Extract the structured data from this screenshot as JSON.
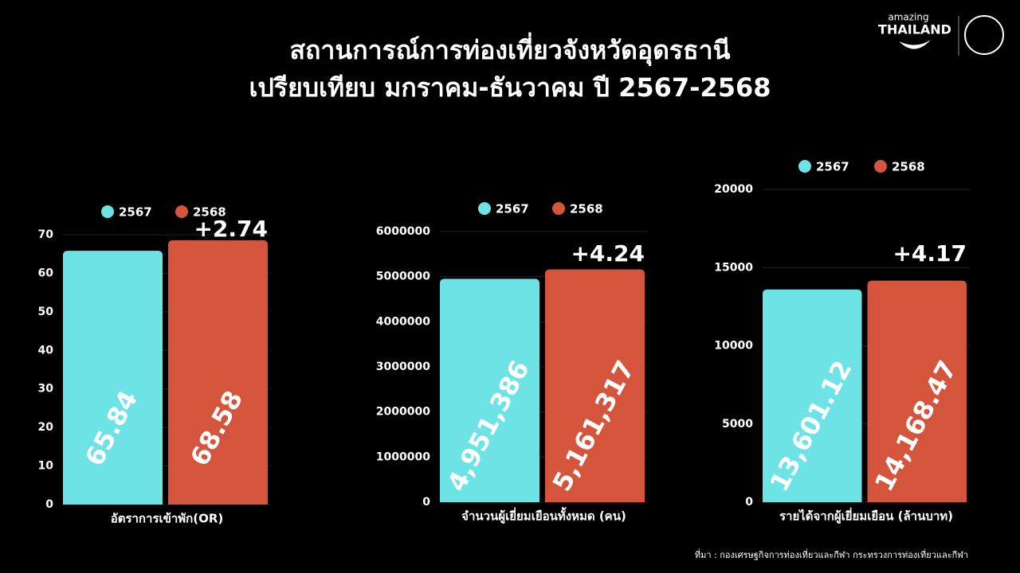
{
  "title": [
    "สถานการณ์การท่องเที่ยวจังหวัดอุดรธานี",
    "เปรียบเทียบ มกราคม-ธันวาคม ปี 2567-2568"
  ],
  "logo": {
    "small": "amazing",
    "big": "THAILAND"
  },
  "source": "ที่มา : กองเศรษฐกิจการท่องเที่ยวและกีฬา กระทรวงการท่องเที่ยวและกีฬา",
  "chart_data": [
    {
      "type": "bar",
      "categories": [
        "อัตราการเข้าพัก(OR)"
      ],
      "series": [
        {
          "name": "2567",
          "color": "#6de3e6",
          "values": [
            65.84
          ]
        },
        {
          "name": "2568",
          "color": "#d4553b",
          "values": [
            68.58
          ]
        }
      ],
      "annotation": "+2.74",
      "ylim": [
        0,
        70
      ],
      "yticks": [
        0,
        10,
        20,
        30,
        40,
        50,
        60,
        70
      ],
      "grid": true
    },
    {
      "type": "bar",
      "categories": [
        "จำนวนผู้เยี่ยมเยือนทั้งหมด (คน)"
      ],
      "series": [
        {
          "name": "2567",
          "color": "#6de3e6",
          "values": [
            4951386
          ],
          "value_labels": [
            "4,951,386"
          ]
        },
        {
          "name": "2568",
          "color": "#d4553b",
          "values": [
            5161317
          ],
          "value_labels": [
            "5,161,317"
          ]
        }
      ],
      "annotation": "+4.24",
      "ylim": [
        0,
        6000000
      ],
      "yticks": [
        0,
        1000000,
        2000000,
        3000000,
        4000000,
        5000000,
        6000000
      ],
      "grid": true
    },
    {
      "type": "bar",
      "categories": [
        "รายได้จากผู้เยี่ยมเยือน (ล้านบาท)"
      ],
      "series": [
        {
          "name": "2567",
          "color": "#6de3e6",
          "values": [
            13601.12
          ],
          "value_labels": [
            "13,601.12"
          ]
        },
        {
          "name": "2568",
          "color": "#d4553b",
          "values": [
            14168.47
          ],
          "value_labels": [
            "14,168.47"
          ]
        }
      ],
      "annotation": "+4.17",
      "ylim": [
        0,
        20000
      ],
      "yticks": [
        0,
        5000,
        10000,
        15000,
        20000
      ],
      "grid": true
    }
  ]
}
